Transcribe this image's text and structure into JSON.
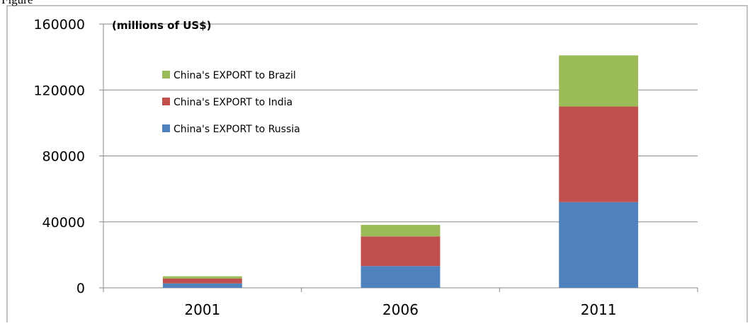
{
  "caption": "Figure",
  "chart_data": {
    "type": "bar",
    "stacked": true,
    "unit_label": "(millions of US$)",
    "categories": [
      "2001",
      "2006",
      "2011"
    ],
    "series": [
      {
        "name": "China's EXPORT to Russia",
        "color": "#4f81bd",
        "values": [
          2700,
          13200,
          52000
        ]
      },
      {
        "name": "China's EXPORT to India",
        "color": "#c0504d",
        "values": [
          2900,
          18000,
          58000
        ]
      },
      {
        "name": "China's EXPORT to Brazil",
        "color": "#9bbb59",
        "values": [
          1400,
          7000,
          31000
        ]
      }
    ],
    "yticks": [
      "0",
      "40000",
      "80000",
      "120000",
      "160000"
    ],
    "ylim": [
      0,
      160000
    ],
    "grid": true,
    "legend_position": "top-left",
    "legend_order": [
      "China's EXPORT to Brazil",
      "China's EXPORT to India",
      "China's EXPORT to Russia"
    ]
  }
}
